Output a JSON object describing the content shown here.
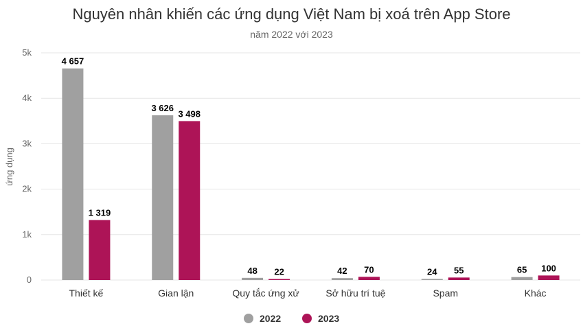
{
  "chart_data": {
    "type": "bar",
    "title": "Nguyên nhân khiến các ứng dụng Việt Nam bị xoá trên App Store",
    "subtitle": "năm 2022 với 2023",
    "ylabel": "ứng dụng",
    "xlabel": "",
    "ylim": [
      0,
      5000
    ],
    "yticks": [
      0,
      1000,
      2000,
      3000,
      4000,
      5000
    ],
    "ytick_labels": [
      "0",
      "1k",
      "2k",
      "3k",
      "4k",
      "5k"
    ],
    "grid": true,
    "legend_position": "bottom-center",
    "categories": [
      "Thiết kế",
      "Gian lận",
      "Quy tắc ứng xử",
      "Sở hữu trí tuệ",
      "Spam",
      "Khác"
    ],
    "series": [
      {
        "name": "2022",
        "color": "#a0a0a0",
        "values": [
          4657,
          3626,
          48,
          42,
          24,
          65
        ],
        "labels": [
          "4 657",
          "3 626",
          "48",
          "42",
          "24",
          "65"
        ]
      },
      {
        "name": "2023",
        "color": "#ad1457",
        "values": [
          1319,
          3498,
          22,
          70,
          55,
          100
        ],
        "labels": [
          "1 319",
          "3 498",
          "22",
          "70",
          "55",
          "100"
        ]
      }
    ]
  }
}
